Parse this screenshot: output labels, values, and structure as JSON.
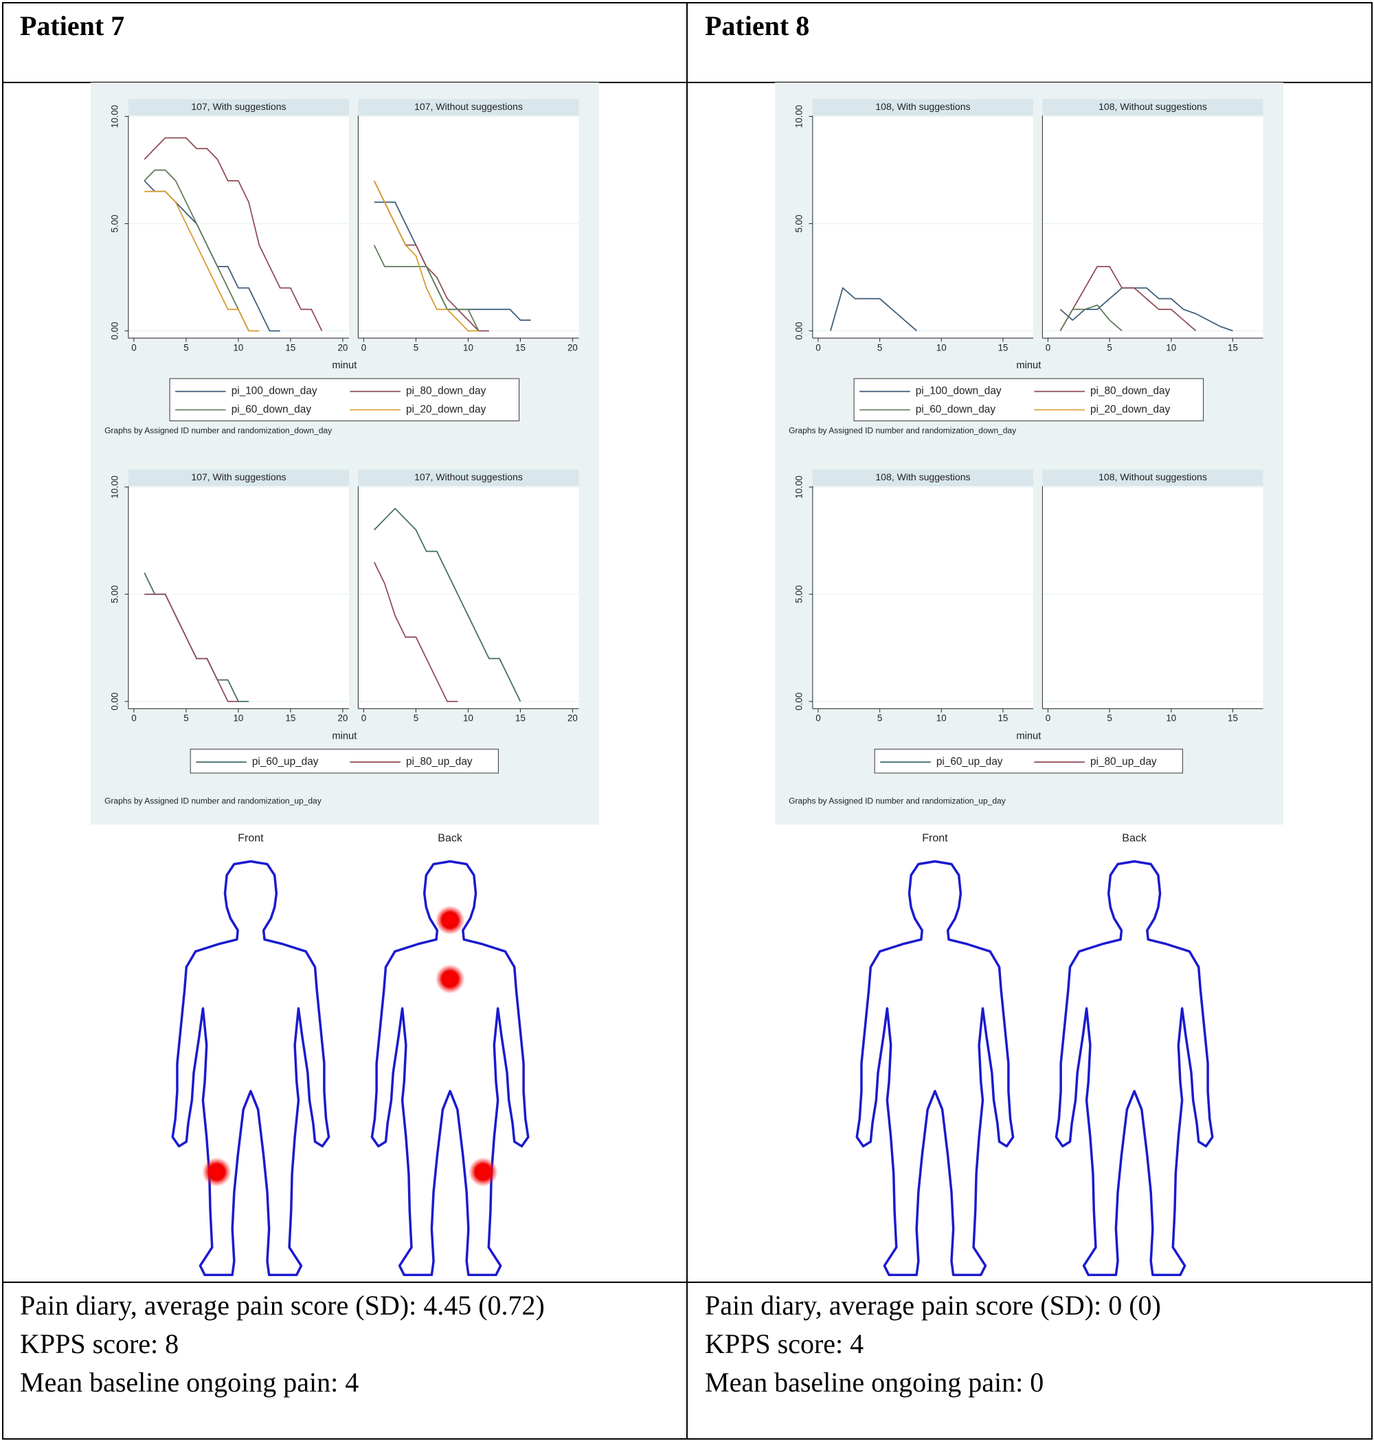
{
  "table": {
    "columns": [
      {
        "header": "Patient 7",
        "graphs": [
          {
            "type": "line",
            "xlabel": "minut",
            "xlim": [
              -0.53,
              20.6
            ],
            "xticks": [
              0,
              5,
              10,
              15,
              20
            ],
            "ylim": [
              -0.34,
              10.04
            ],
            "yticks": [
              {
                "value": 0,
                "label": "0.00"
              },
              {
                "value": 5,
                "label": "5.00"
              },
              {
                "value": 10,
                "label": "10.00"
              }
            ],
            "grid": true,
            "series": [
              {
                "name": "pi_100_down_day",
                "color": "#3b5a78"
              },
              {
                "name": "pi_80_down_day",
                "color": "#8e4a55"
              },
              {
                "name": "pi_60_down_day",
                "color": "#5f7a58"
              },
              {
                "name": "pi_20_down_day",
                "color": "#d79a2c"
              }
            ],
            "facets": [
              {
                "title": "107, With suggestions",
                "lines": [
                  {
                    "x": [
                      1,
                      2,
                      3,
                      4,
                      5,
                      6,
                      7,
                      8,
                      9,
                      10,
                      11,
                      12,
                      13,
                      14
                    ],
                    "values": [
                      7,
                      6.5,
                      6.5,
                      6,
                      5.5,
                      5,
                      4,
                      3,
                      3,
                      2,
                      2,
                      1,
                      0,
                      0
                    ]
                  },
                  {
                    "x": [
                      1,
                      2,
                      3,
                      4,
                      5,
                      6,
                      7,
                      8,
                      9,
                      10,
                      11,
                      12,
                      13,
                      14,
                      15,
                      16,
                      17,
                      18
                    ],
                    "values": [
                      8,
                      8.5,
                      9,
                      9,
                      9,
                      8.5,
                      8.5,
                      8,
                      7,
                      7,
                      6,
                      4,
                      3,
                      2,
                      2,
                      1,
                      1,
                      0
                    ]
                  },
                  {
                    "x": [
                      1,
                      2,
                      3,
                      4,
                      5,
                      6,
                      7,
                      8,
                      9,
                      10,
                      11
                    ],
                    "values": [
                      7,
                      7.5,
                      7.5,
                      7,
                      6,
                      5,
                      4,
                      3,
                      2,
                      1,
                      0
                    ]
                  },
                  {
                    "x": [
                      1,
                      2,
                      3,
                      4,
                      5,
                      6,
                      7,
                      8,
                      9,
                      10,
                      11,
                      12
                    ],
                    "values": [
                      6.5,
                      6.5,
                      6.5,
                      6,
                      5,
                      4,
                      3,
                      2,
                      1,
                      1,
                      0,
                      0
                    ]
                  }
                ]
              },
              {
                "title": "107, Without suggestions",
                "lines": [
                  {
                    "x": [
                      1,
                      2,
                      3,
                      4,
                      5,
                      6,
                      7,
                      8,
                      9,
                      10,
                      11,
                      12,
                      13,
                      14,
                      15,
                      16
                    ],
                    "values": [
                      6,
                      6,
                      6,
                      5,
                      4,
                      3,
                      2,
                      1,
                      1,
                      1,
                      1,
                      1,
                      1,
                      1,
                      0.5,
                      0.5
                    ]
                  },
                  {
                    "x": [
                      1,
                      2,
                      3,
                      4,
                      5,
                      6,
                      7,
                      8,
                      9,
                      10,
                      11,
                      12
                    ],
                    "values": [
                      7,
                      6,
                      5,
                      4,
                      4,
                      3,
                      2.5,
                      1.5,
                      1,
                      0.5,
                      0,
                      0
                    ]
                  },
                  {
                    "x": [
                      1,
                      2,
                      3,
                      4,
                      5,
                      6,
                      7,
                      8,
                      9,
                      10,
                      11
                    ],
                    "values": [
                      4,
                      3,
                      3,
                      3,
                      3,
                      3,
                      2,
                      1,
                      1,
                      1,
                      0
                    ]
                  },
                  {
                    "x": [
                      1,
                      2,
                      3,
                      4,
                      5,
                      6,
                      7,
                      8,
                      9,
                      10,
                      11
                    ],
                    "values": [
                      7,
                      6,
                      5,
                      4,
                      3.5,
                      2,
                      1,
                      1,
                      0.5,
                      0,
                      0
                    ]
                  }
                ]
              }
            ],
            "note": "Graphs by Assigned ID number and randomization_down_day"
          },
          {
            "type": "line",
            "xlabel": "minut",
            "xlim": [
              -0.53,
              20.6
            ],
            "xticks": [
              0,
              5,
              10,
              15,
              20
            ],
            "ylim": [
              -0.34,
              10.04
            ],
            "yticks": [
              {
                "value": 0,
                "label": "0.00"
              },
              {
                "value": 5,
                "label": "5.00"
              },
              {
                "value": 10,
                "label": "10.00"
              }
            ],
            "grid": true,
            "series": [
              {
                "name": "pi_60_up_day",
                "color": "#3f6a6a"
              },
              {
                "name": "pi_80_up_day",
                "color": "#8e4a55"
              }
            ],
            "facets": [
              {
                "title": "107, With suggestions",
                "lines": [
                  {
                    "x": [
                      1,
                      2,
                      3,
                      4,
                      5,
                      6,
                      7,
                      8,
                      9,
                      10,
                      11
                    ],
                    "values": [
                      6,
                      5,
                      5,
                      4,
                      3,
                      2,
                      2,
                      1,
                      1,
                      0,
                      0
                    ]
                  },
                  {
                    "x": [
                      1,
                      2,
                      3,
                      4,
                      5,
                      6,
                      7,
                      8,
                      9,
                      10
                    ],
                    "values": [
                      5,
                      5,
                      5,
                      4,
                      3,
                      2,
                      2,
                      1,
                      0,
                      0
                    ]
                  }
                ]
              },
              {
                "title": "107, Without suggestions",
                "lines": [
                  {
                    "x": [
                      1,
                      2,
                      3,
                      4,
                      5,
                      6,
                      7,
                      8,
                      9,
                      10,
                      11,
                      12,
                      13,
                      14,
                      15
                    ],
                    "values": [
                      8,
                      8.5,
                      9,
                      8.5,
                      8,
                      7,
                      7,
                      6,
                      5,
                      4,
                      3,
                      2,
                      2,
                      1,
                      0
                    ]
                  },
                  {
                    "x": [
                      1,
                      2,
                      3,
                      4,
                      5,
                      6,
                      7,
                      8,
                      9
                    ],
                    "values": [
                      6.5,
                      5.5,
                      4,
                      3,
                      3,
                      2,
                      1,
                      0,
                      0
                    ]
                  }
                ]
              }
            ],
            "note": "Graphs by Assigned ID number and randomization_up_day"
          }
        ],
        "body": {
          "front": "Front",
          "back": "Back"
        },
        "summary": [
          "Pain diary, average pain score (SD): 4.45 (0.72)",
          "KPPS score: 8",
          "Mean baseline ongoing pain: 4"
        ]
      },
      {
        "header": "Patient 8",
        "graphs": [
          {
            "type": "line",
            "xlabel": "minut",
            "xlim": [
              -0.45,
              17.46
            ],
            "xticks": [
              0,
              5,
              10,
              15
            ],
            "ylim": [
              -0.34,
              10.04
            ],
            "yticks": [
              {
                "value": 0,
                "label": "0.00"
              },
              {
                "value": 5,
                "label": "5.00"
              },
              {
                "value": 10,
                "label": "10.00"
              }
            ],
            "grid": true,
            "series": [
              {
                "name": "pi_100_down_day",
                "color": "#3b5a78"
              },
              {
                "name": "pi_80_down_day",
                "color": "#8e4a55"
              },
              {
                "name": "pi_60_down_day",
                "color": "#5f7a58"
              },
              {
                "name": "pi_20_down_day",
                "color": "#d79a2c"
              }
            ],
            "facets": [
              {
                "title": "108, With suggestions",
                "lines": [
                  {
                    "x": [
                      1,
                      2,
                      3,
                      4,
                      5,
                      6,
                      7,
                      8
                    ],
                    "values": [
                      0,
                      2,
                      1.5,
                      1.5,
                      1.5,
                      1,
                      0.5,
                      0
                    ]
                  },
                  {
                    "x": [],
                    "values": []
                  },
                  {
                    "x": [],
                    "values": []
                  },
                  {
                    "x": [],
                    "values": []
                  }
                ]
              },
              {
                "title": "108, Without suggestions",
                "lines": [
                  {
                    "x": [
                      1,
                      2,
                      3,
                      4,
                      5,
                      6,
                      7,
                      8,
                      9,
                      10,
                      11,
                      12,
                      13,
                      14,
                      15
                    ],
                    "values": [
                      1,
                      0.5,
                      1,
                      1,
                      1.5,
                      2,
                      2,
                      2,
                      1.5,
                      1.5,
                      1,
                      0.8,
                      0.5,
                      0.2,
                      0
                    ]
                  },
                  {
                    "x": [
                      1,
                      2,
                      3,
                      4,
                      5,
                      6,
                      7,
                      8,
                      9,
                      10,
                      11,
                      12
                    ],
                    "values": [
                      0,
                      1,
                      2,
                      3,
                      3,
                      2,
                      2,
                      1.5,
                      1,
                      1,
                      0.5,
                      0
                    ]
                  },
                  {
                    "x": [
                      1,
                      2,
                      3,
                      4,
                      5,
                      6
                    ],
                    "values": [
                      0,
                      1,
                      1,
                      1.2,
                      0.5,
                      0
                    ]
                  },
                  {
                    "x": [],
                    "values": []
                  }
                ]
              }
            ],
            "note": "Graphs by Assigned ID number and randomization_down_day"
          },
          {
            "type": "line",
            "xlabel": "minut",
            "xlim": [
              -0.45,
              17.46
            ],
            "xticks": [
              0,
              5,
              10,
              15
            ],
            "ylim": [
              -0.34,
              10.04
            ],
            "yticks": [
              {
                "value": 0,
                "label": "0.00"
              },
              {
                "value": 5,
                "label": "5.00"
              },
              {
                "value": 10,
                "label": "10.00"
              }
            ],
            "grid": true,
            "series": [
              {
                "name": "pi_60_up_day",
                "color": "#3f6a6a"
              },
              {
                "name": "pi_80_up_day",
                "color": "#8e4a55"
              }
            ],
            "facets": [
              {
                "title": "108, With suggestions",
                "lines": [
                  {
                    "x": [],
                    "values": []
                  },
                  {
                    "x": [],
                    "values": []
                  }
                ]
              },
              {
                "title": "108, Without suggestions",
                "lines": [
                  {
                    "x": [],
                    "values": []
                  },
                  {
                    "x": [],
                    "values": []
                  }
                ]
              }
            ],
            "note": "Graphs by Assigned ID number and randomization_up_day"
          }
        ],
        "body": {
          "front": "Front",
          "back": "Back"
        },
        "summary": [
          "Pain diary, average pain score (SD): 0 (0)",
          "KPPS score: 4",
          "Mean baseline ongoing pain: 0"
        ]
      }
    ]
  }
}
